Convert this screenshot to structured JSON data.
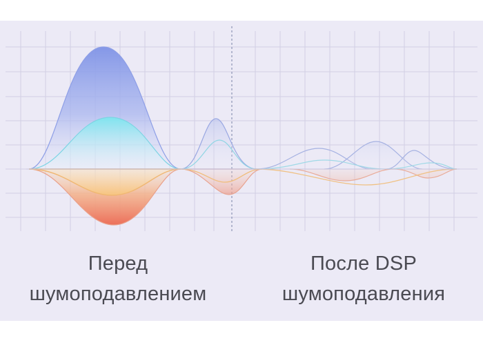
{
  "caption_before": {
    "line1": "Перед",
    "line2": "шумоподавлением"
  },
  "caption_after": {
    "line1": "После DSP",
    "line2": "шумоподавления"
  },
  "colors": {
    "panel_background": "#eceaf6",
    "grid": "#d2cfe4",
    "divider": "#8b93b3",
    "wave_blue": "#6f86e0",
    "wave_cyan": "#78e2ec",
    "wave_orange": "#f3b266",
    "wave_red": "#ee7a62",
    "caption_text": "#4a4a52"
  }
}
